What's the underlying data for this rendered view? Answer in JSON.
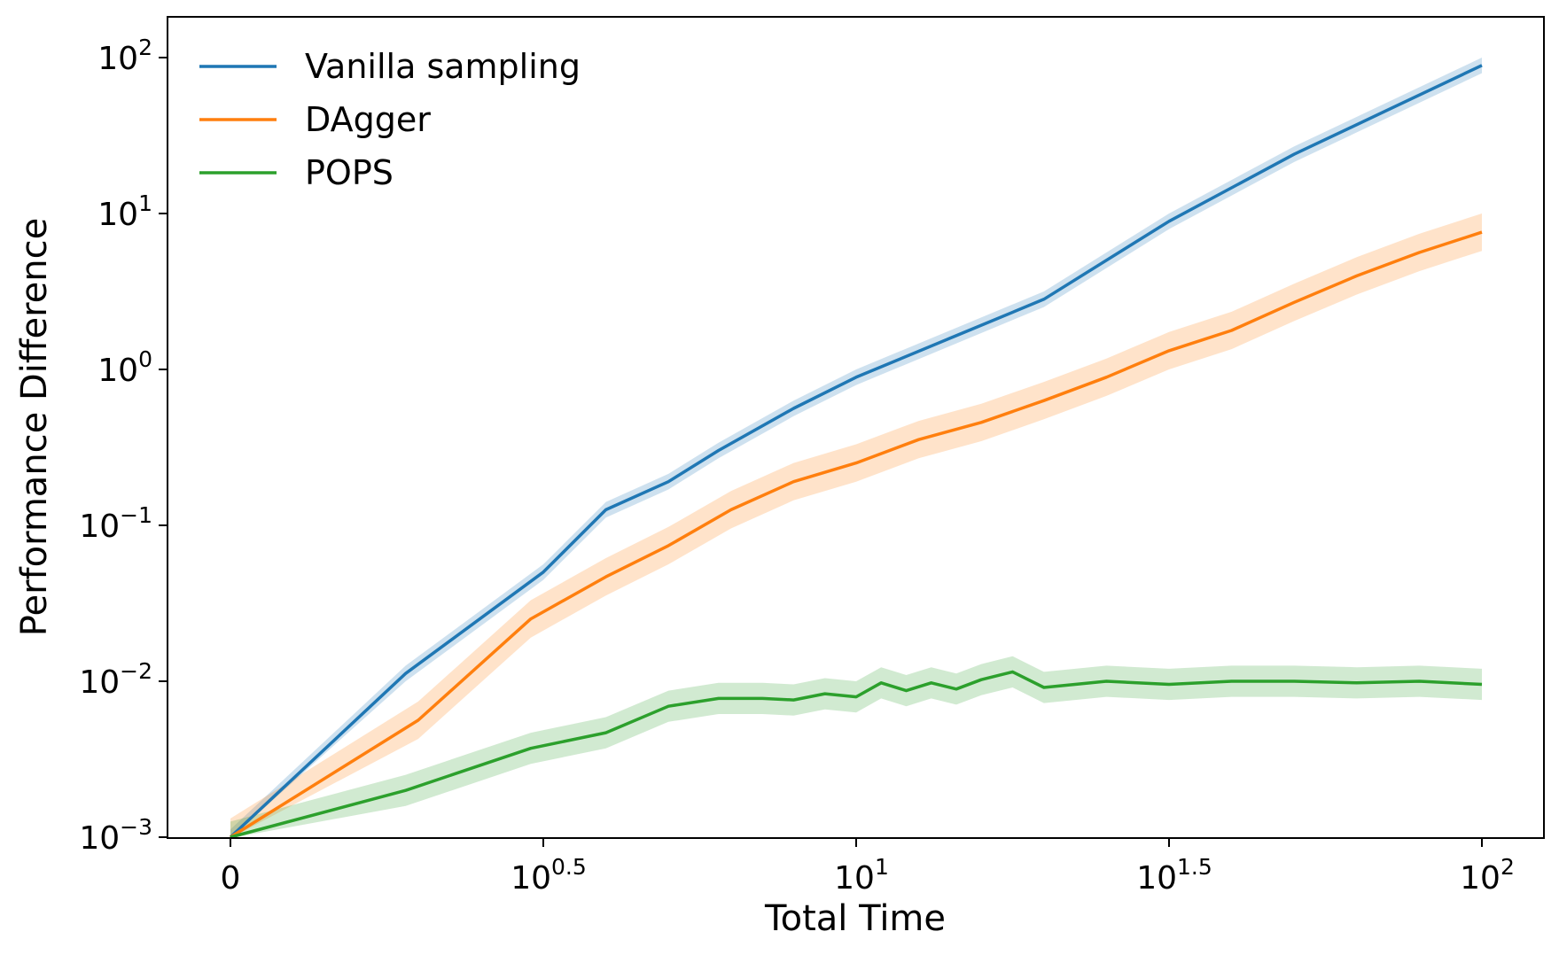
{
  "chart_data": {
    "type": "line",
    "xlabel": "Total Time",
    "ylabel": "Performance Difference",
    "xscale": "log (offset by 1; first tick labeled 0)",
    "yscale": "log",
    "xlim_log10": [
      -0.1,
      2.1
    ],
    "ylim_log10": [
      -3,
      2.2
    ],
    "x_ticks": [
      {
        "log": 0,
        "base": "0",
        "exp": ""
      },
      {
        "log": 0.5,
        "base": "10",
        "exp": "0.5"
      },
      {
        "log": 1,
        "base": "10",
        "exp": "1"
      },
      {
        "log": 1.5,
        "base": "10",
        "exp": "1.5"
      },
      {
        "log": 2,
        "base": "10",
        "exp": "2"
      }
    ],
    "y_ticks": [
      {
        "log": -3,
        "base": "10",
        "exp": "−3"
      },
      {
        "log": -2,
        "base": "10",
        "exp": "−2"
      },
      {
        "log": -1,
        "base": "10",
        "exp": "−1"
      },
      {
        "log": 0,
        "base": "10",
        "exp": "0"
      },
      {
        "log": 1,
        "base": "10",
        "exp": "1"
      },
      {
        "log": 2,
        "base": "10",
        "exp": "2"
      }
    ],
    "legend_position": "top-left",
    "series": [
      {
        "name": "Vanilla sampling",
        "color": "#1f77b4",
        "fill": "#aec7e8",
        "x_log10": [
          0,
          0.28,
          0.5,
          0.6,
          0.7,
          0.78,
          0.9,
          1.0,
          1.15,
          1.3,
          1.5,
          1.7,
          2.0
        ],
        "y_log10": [
          -3,
          -1.95,
          -1.3,
          -0.9,
          -0.72,
          -0.52,
          -0.25,
          -0.05,
          0.2,
          0.45,
          0.95,
          1.38,
          1.95
        ],
        "band_log10": 0.05
      },
      {
        "name": "DAgger",
        "color": "#ff7f0e",
        "fill": "#ffbb78",
        "x_log10": [
          0,
          0.3,
          0.48,
          0.6,
          0.7,
          0.8,
          0.9,
          1.0,
          1.1,
          1.2,
          1.3,
          1.4,
          1.5,
          1.6,
          1.7,
          1.8,
          1.9,
          2.0
        ],
        "y_log10": [
          -3,
          -2.25,
          -1.6,
          -1.33,
          -1.13,
          -0.9,
          -0.72,
          -0.6,
          -0.45,
          -0.34,
          -0.2,
          -0.05,
          0.12,
          0.25,
          0.43,
          0.6,
          0.75,
          0.88
        ],
        "band_log10": 0.12
      },
      {
        "name": "POPS",
        "color": "#2ca02c",
        "fill": "#98df8a",
        "x_log10": [
          0,
          0.28,
          0.48,
          0.6,
          0.7,
          0.78,
          0.85,
          0.9,
          0.95,
          1.0,
          1.04,
          1.08,
          1.12,
          1.16,
          1.2,
          1.25,
          1.3,
          1.4,
          1.5,
          1.6,
          1.7,
          1.8,
          1.9,
          2.0
        ],
        "y_log10": [
          -3,
          -2.7,
          -2.43,
          -2.33,
          -2.16,
          -2.11,
          -2.11,
          -2.12,
          -2.08,
          -2.1,
          -2.01,
          -2.06,
          -2.01,
          -2.05,
          -1.99,
          -1.94,
          -2.04,
          -2.0,
          -2.02,
          -2.0,
          -2.0,
          -2.01,
          -2.0,
          -2.02
        ],
        "band_log10": 0.1
      }
    ]
  }
}
